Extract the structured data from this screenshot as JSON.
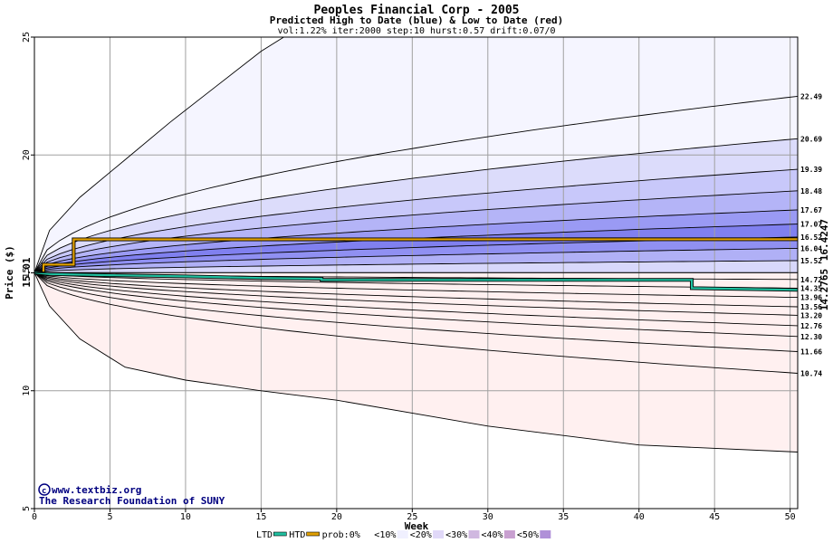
{
  "chart_data": {
    "type": "area",
    "title": "Peoples Financial Corp - 2005",
    "subtitle": "Predicted High to Date (blue) &  Low to Date (red)",
    "params": "vol:1.22% iter:2000 step:10 hurst:0.57 drift:0.07/0",
    "xlabel": "Week",
    "ylabel": "Price ($)",
    "xlim": [
      0,
      50.5
    ],
    "ylim": [
      5,
      25
    ],
    "x_ticks": [
      0,
      5,
      10,
      15,
      20,
      25,
      30,
      35,
      40,
      45,
      50
    ],
    "y_ticks": [
      5,
      10,
      15,
      20,
      25
    ],
    "start_price": 15.01,
    "start_label": "15.01",
    "htd_label": "16.4247",
    "ltd_label": "14.2765",
    "htd_color": "#e0a000",
    "ltd_color": "#20c0a0",
    "htd_label_color": "#a08000",
    "ltd_label_color": "#008060",
    "grid": true,
    "high_bands": [
      {
        "end": 22.49,
        "label": "22.49",
        "fill": "#f5f5ff"
      },
      {
        "end": 20.69,
        "label": "20.69",
        "fill": "#dcdcfb"
      },
      {
        "end": 19.39,
        "label": "19.39",
        "fill": "#c8c8fa"
      },
      {
        "end": 18.48,
        "label": "18.48",
        "fill": "#b4b4f7"
      },
      {
        "end": 17.67,
        "label": "17.67",
        "fill": "#9a9af4"
      },
      {
        "end": 17.07,
        "label": "17.07",
        "fill": "#8080ef"
      },
      {
        "end": 16.52,
        "label": "16.52",
        "fill": "#9090f2"
      },
      {
        "end": 16.04,
        "label": "16.04",
        "fill": "#b0b0f6"
      },
      {
        "end": 15.52,
        "label": "15.52",
        "fill": "#d8d8fb"
      }
    ],
    "low_bands": [
      {
        "end": 14.72,
        "label": "14.72",
        "fill": "#ffe8e8"
      },
      {
        "end": 14.35,
        "label": "14.35",
        "fill": "#ffd0d0"
      },
      {
        "end": 13.96,
        "label": "13.96",
        "fill": "#ffb4b4"
      },
      {
        "end": 13.56,
        "label": "13.56",
        "fill": "#ff9c9c"
      },
      {
        "end": 13.2,
        "label": "13.20",
        "fill": "#fa8080"
      },
      {
        "end": 12.76,
        "label": "12.76",
        "fill": "#fc9a9a"
      },
      {
        "end": 12.3,
        "label": "12.30",
        "fill": "#ffb8b8"
      },
      {
        "end": 11.66,
        "label": "11.66",
        "fill": "#ffd6d6"
      },
      {
        "end": 10.74,
        "label": "10.74",
        "fill": "#fff0f0"
      }
    ],
    "outer_high": {
      "x": [
        0,
        1,
        3,
        6,
        9,
        12,
        15,
        16.5
      ],
      "y": [
        15.01,
        16.8,
        18.2,
        19.8,
        21.4,
        22.9,
        24.4,
        25.0
      ]
    },
    "outer_low": {
      "x": [
        0,
        1,
        3,
        6,
        10,
        15,
        20,
        30,
        40,
        50.5
      ],
      "y": [
        15.01,
        13.6,
        12.2,
        11.0,
        10.45,
        10.0,
        9.6,
        8.5,
        7.7,
        7.4
      ]
    },
    "htd": {
      "x": [
        0,
        0.6,
        0.6,
        2.6,
        2.6,
        50.5
      ],
      "y": [
        15.01,
        15.01,
        15.35,
        15.35,
        16.42,
        16.4247
      ]
    },
    "ltd": {
      "x": [
        0,
        1,
        5,
        10,
        15,
        19,
        19,
        30,
        43.5,
        43.5,
        50.5
      ],
      "y": [
        15.01,
        14.95,
        14.9,
        14.85,
        14.78,
        14.75,
        14.7,
        14.7,
        14.7,
        14.35,
        14.2765
      ]
    },
    "legend": [
      {
        "label": "LTD",
        "swatch": "#20c0a0",
        "kind": "line"
      },
      {
        "label": "HTD",
        "swatch": "#e0a000",
        "kind": "line"
      },
      {
        "label": "prob:0%",
        "swatch": "#ffffff",
        "kind": "box"
      },
      {
        "label": "<10%",
        "swatch": "#f0f0ff",
        "kind": "box"
      },
      {
        "label": "<20%",
        "swatch": "#e0d8f8",
        "kind": "box"
      },
      {
        "label": "<30%",
        "swatch": "#d0b8e0",
        "kind": "box"
      },
      {
        "label": "<40%",
        "swatch": "#c8a0d0",
        "kind": "box"
      },
      {
        "label": "<50%",
        "swatch": "#b090d8",
        "kind": "box"
      }
    ],
    "trailing_legend_label": "<50%",
    "credit_line1": "www.textbiz.org",
    "credit_line2": "The Research Foundation of SUNY"
  }
}
